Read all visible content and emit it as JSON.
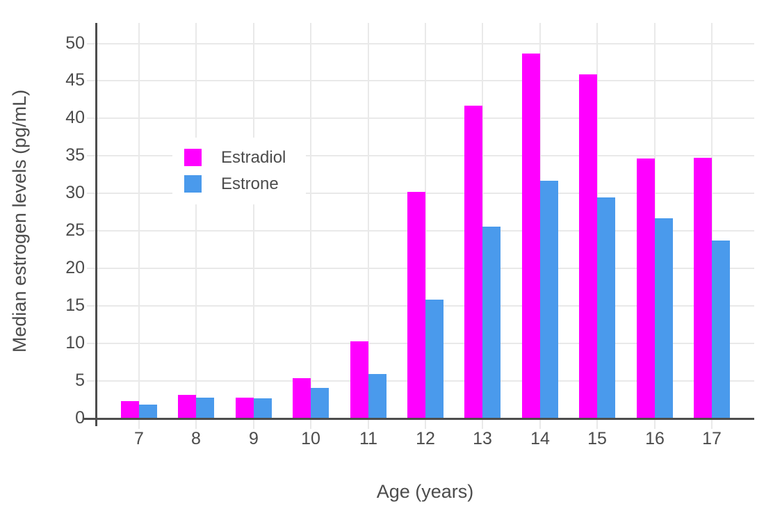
{
  "chart_data": {
    "type": "bar",
    "title": "",
    "xlabel": "Age (years)",
    "ylabel": "Median estrogen levels (pg/mL)",
    "categories": [
      "7",
      "8",
      "9",
      "10",
      "11",
      "12",
      "13",
      "14",
      "15",
      "16",
      "17"
    ],
    "series": [
      {
        "name": "Estradiol",
        "color": "#FF00FF",
        "values": [
          2.2,
          3.1,
          2.7,
          5.3,
          10.2,
          30.1,
          41.6,
          48.6,
          45.8,
          34.6,
          34.7
        ]
      },
      {
        "name": "Estrone",
        "color": "#4A9AEC",
        "values": [
          1.8,
          2.7,
          2.6,
          4.0,
          5.8,
          15.8,
          25.5,
          31.6,
          29.4,
          26.6,
          23.6
        ]
      }
    ],
    "ylim": [
      0,
      52.8
    ],
    "yticks": [
      0,
      5,
      10,
      15,
      20,
      25,
      30,
      35,
      40,
      45,
      50
    ],
    "grid": true,
    "legend_position": "inside top-left"
  },
  "colors": {
    "estradiol": "#FF00FF",
    "estrone": "#4A9AEC",
    "gridline": "#E9E9E9",
    "axis_line": "#4D4D4D",
    "text": "#4C4C4C",
    "background": "#FFFFFF"
  }
}
